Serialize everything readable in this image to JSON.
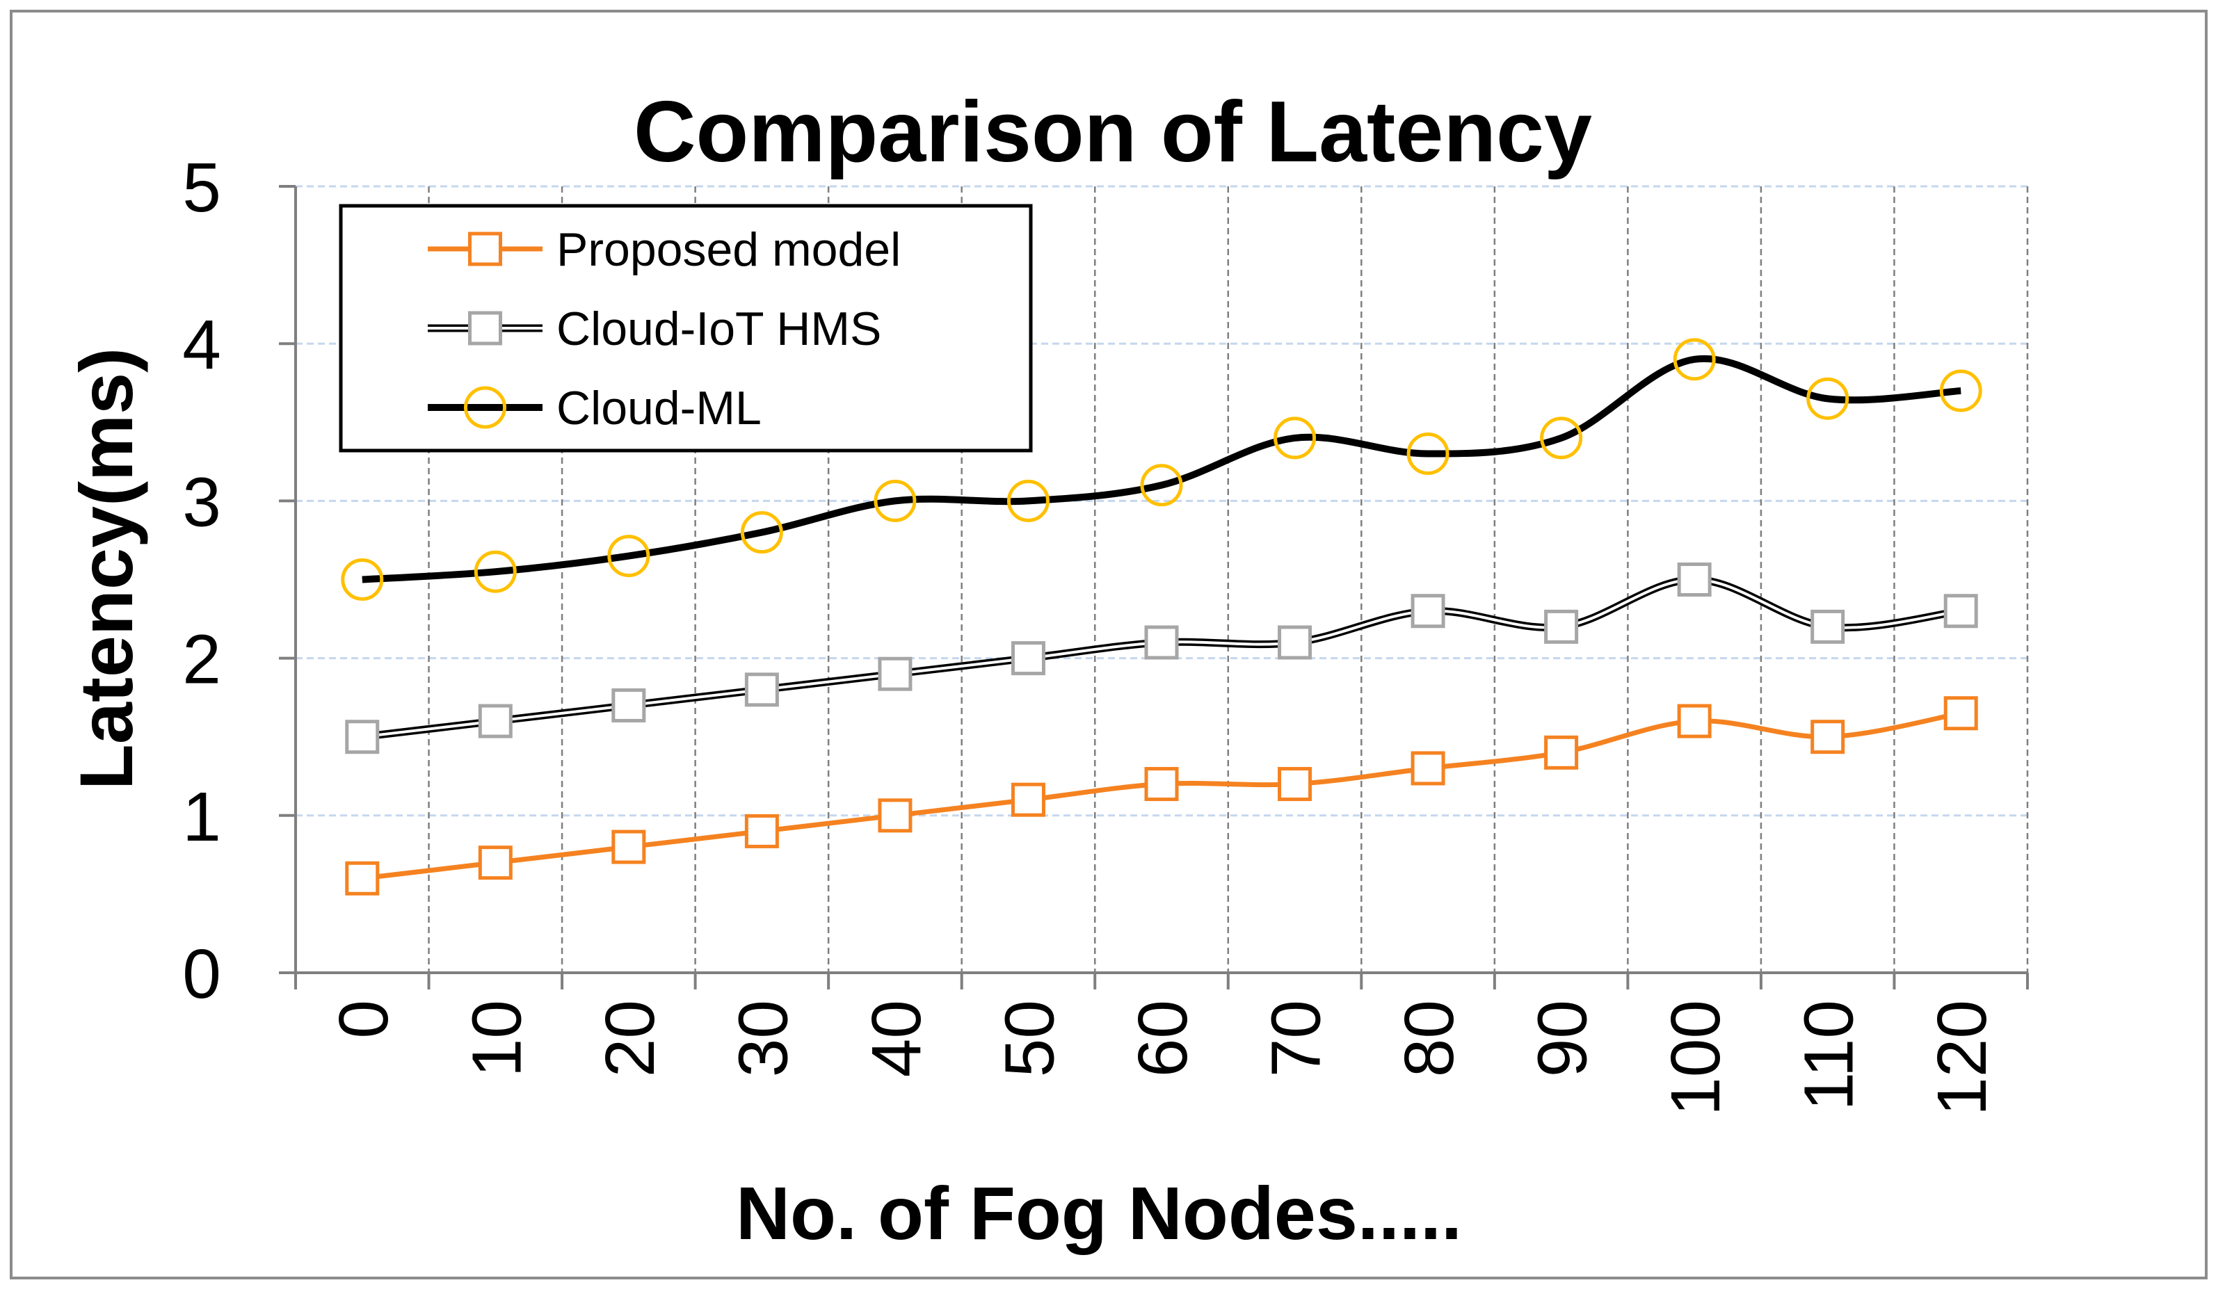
{
  "chart_data": {
    "type": "line",
    "title": "Comparison of Latency",
    "xlabel": "No. of Fog Nodes.....",
    "ylabel": "Latency(ms)",
    "categories": [
      "0",
      "10",
      "20",
      "30",
      "40",
      "50",
      "60",
      "70",
      "80",
      "90",
      "100",
      "110",
      "120"
    ],
    "ylim": [
      0,
      5
    ],
    "yticks": [
      "0",
      "1",
      "2",
      "3",
      "4",
      "5"
    ],
    "grid": true,
    "legend_position": "top-left",
    "series": [
      {
        "name": "Proposed model",
        "marker": "square",
        "line_color": "#f58220",
        "marker_color": "#f58220",
        "values": [
          0.6,
          0.7,
          0.8,
          0.9,
          1.0,
          1.1,
          1.2,
          1.2,
          1.3,
          1.4,
          1.6,
          1.5,
          1.65
        ]
      },
      {
        "name": "Cloud-IoT HMS",
        "marker": "square",
        "line_color": "#000000",
        "marker_color": "#a6a6a6",
        "values": [
          1.5,
          1.6,
          1.7,
          1.8,
          1.9,
          2.0,
          2.1,
          2.1,
          2.3,
          2.2,
          2.5,
          2.2,
          2.3
        ]
      },
      {
        "name": "Cloud-ML",
        "marker": "circle",
        "line_color": "#000000",
        "marker_color": "#ffc000",
        "values": [
          2.5,
          2.55,
          2.65,
          2.8,
          3.0,
          3.0,
          3.1,
          3.4,
          3.3,
          3.4,
          3.9,
          3.65,
          3.7
        ]
      }
    ]
  }
}
